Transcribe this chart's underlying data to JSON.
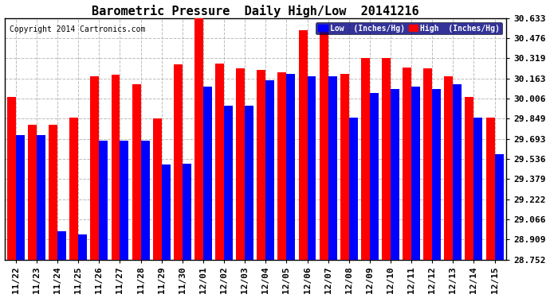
{
  "title": "Barometric Pressure  Daily High/Low  20141216",
  "copyright": "Copyright 2014 Cartronics.com",
  "legend_low": "Low  (Inches/Hg)",
  "legend_high": "High  (Inches/Hg)",
  "categories": [
    "11/22",
    "11/23",
    "11/24",
    "11/25",
    "11/26",
    "11/27",
    "11/28",
    "11/29",
    "11/30",
    "12/01",
    "12/02",
    "12/03",
    "12/04",
    "12/05",
    "12/06",
    "12/07",
    "12/08",
    "12/09",
    "12/10",
    "12/11",
    "12/12",
    "12/13",
    "12/14",
    "12/15"
  ],
  "low_values": [
    29.72,
    29.72,
    28.97,
    28.95,
    29.68,
    29.68,
    29.68,
    29.49,
    29.5,
    30.1,
    29.95,
    29.95,
    30.15,
    30.2,
    30.18,
    30.18,
    29.86,
    30.05,
    30.08,
    30.1,
    30.08,
    30.12,
    29.86,
    29.57
  ],
  "high_values": [
    30.02,
    29.8,
    29.8,
    29.86,
    30.18,
    30.19,
    30.12,
    29.85,
    30.27,
    30.63,
    30.28,
    30.24,
    30.23,
    30.21,
    30.54,
    30.54,
    30.2,
    30.32,
    30.32,
    30.25,
    30.24,
    30.18,
    30.02,
    29.86
  ],
  "ymin": 28.752,
  "ymax": 30.633,
  "yticks": [
    28.752,
    28.909,
    29.066,
    29.222,
    29.379,
    29.536,
    29.693,
    29.849,
    30.006,
    30.163,
    30.319,
    30.476,
    30.633
  ],
  "bar_color_low": "#0000ff",
  "bar_color_high": "#ff0000",
  "bg_color": "#ffffff",
  "grid_color": "#bbbbbb",
  "title_fontsize": 11,
  "copyright_fontsize": 7,
  "label_fontsize": 8
}
